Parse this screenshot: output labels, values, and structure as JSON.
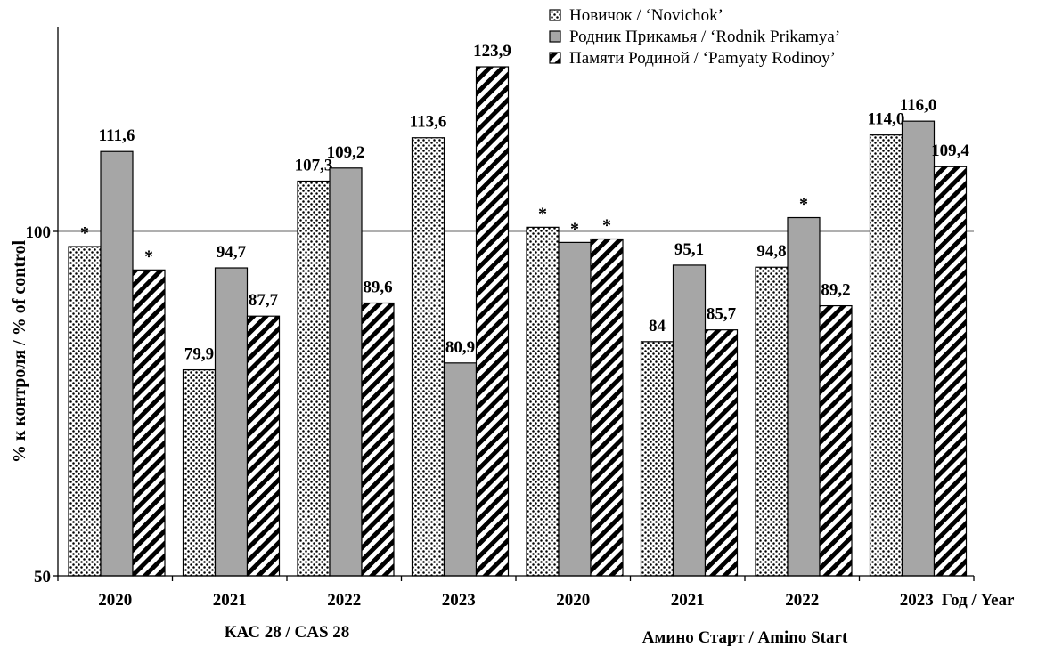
{
  "chart_data": {
    "type": "bar",
    "y_axis": {
      "label": "%  к контроля / % of control",
      "ylim": [
        50,
        130
      ],
      "ticks": [
        50,
        100
      ],
      "reference_line": 100
    },
    "x_axis": {
      "title": "Год / Year",
      "categories": [
        "2020",
        "2021",
        "2022",
        "2023",
        "2020",
        "2021",
        "2022",
        "2023"
      ],
      "groups": [
        {
          "label": "КАС 28 / CAS 28",
          "span": [
            0,
            3
          ]
        },
        {
          "label": "Амино Старт / Amino Start",
          "span": [
            4,
            7
          ]
        }
      ]
    },
    "series": [
      {
        "name": "Новичок / ‘Novichok’",
        "pattern": "dots",
        "values": [
          97.8,
          79.9,
          107.3,
          113.6,
          100.6,
          84,
          94.8,
          114.0
        ],
        "labels": [
          "*",
          "79,9",
          "107,3",
          "113,6",
          "*",
          "84",
          "94,8",
          "114,0"
        ]
      },
      {
        "name": "Родник Прикамья / ‘Rodnik Prikamya’",
        "pattern": "gray",
        "values": [
          111.6,
          94.7,
          109.2,
          80.9,
          98.4,
          95.1,
          102.0,
          116.0
        ],
        "labels": [
          "111,6",
          "94,7",
          "109,2",
          "80,9",
          "*",
          "95,1",
          "*",
          "116,0"
        ]
      },
      {
        "name": "Памяти Родиной / ‘Pamyaty Rodinoy’",
        "pattern": "hatch",
        "values": [
          94.4,
          87.7,
          89.6,
          123.9,
          98.9,
          85.7,
          89.2,
          109.4
        ],
        "labels": [
          "*",
          "87,7",
          "89,6",
          "123,9",
          "*",
          "85,7",
          "89,2",
          "109,4"
        ]
      }
    ],
    "colors": {
      "gray_fill": "#a6a6a6",
      "stroke": "#000000",
      "reference_line": "#7f7f7f"
    },
    "legend_position": "top-right",
    "grid": false
  }
}
